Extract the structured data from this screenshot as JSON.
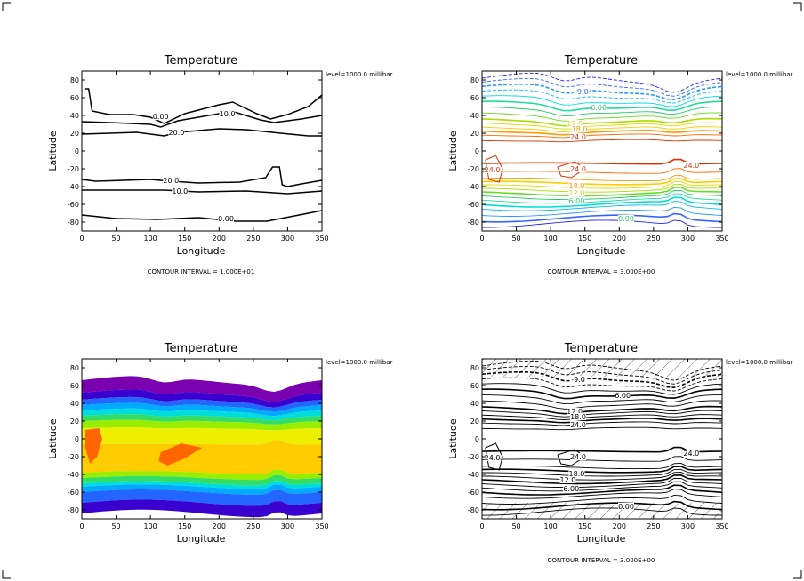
{
  "chart_data": [
    {
      "type": "contour",
      "title": "Temperature",
      "xlabel": "Longitude",
      "ylabel": "Latitude",
      "level_label": "level=1000.0  millibar",
      "footer": "CONTOUR INTERVAL = 1.000E+01",
      "xlim": [
        0,
        350
      ],
      "ylim": [
        -90,
        90
      ],
      "xticks": [
        0,
        50,
        100,
        150,
        200,
        250,
        300,
        350
      ],
      "yticks": [
        -80,
        -60,
        -40,
        -20,
        0,
        20,
        40,
        60,
        80
      ],
      "style": "lines",
      "contours": [
        {
          "level": 0.0,
          "label": "0.00",
          "points": [
            [
              5,
              70
            ],
            [
              10,
              70
            ],
            [
              15,
              45
            ],
            [
              40,
              41
            ],
            [
              75,
              41
            ],
            [
              100,
              38
            ],
            [
              120,
              31
            ],
            [
              150,
              42
            ],
            [
              200,
              52
            ],
            [
              220,
              55
            ],
            [
              255,
              42
            ],
            [
              275,
              36
            ],
            [
              300,
              41
            ],
            [
              330,
              50
            ],
            [
              350,
              63
            ]
          ]
        },
        {
          "level": 10.0,
          "label": "10.0",
          "points": [
            [
              0,
              33
            ],
            [
              40,
              32
            ],
            [
              100,
              30
            ],
            [
              115,
              27
            ],
            [
              140,
              34
            ],
            [
              200,
              42
            ],
            [
              222,
              44
            ],
            [
              260,
              35
            ],
            [
              280,
              32
            ],
            [
              320,
              36
            ],
            [
              350,
              40
            ]
          ]
        },
        {
          "level": 20.0,
          "label": "20.0",
          "points": [
            [
              0,
              19
            ],
            [
              40,
              20
            ],
            [
              80,
              21
            ],
            [
              120,
              17
            ],
            [
              140,
              21
            ],
            [
              200,
              25
            ],
            [
              240,
              24
            ],
            [
              290,
              20
            ],
            [
              330,
              17
            ],
            [
              350,
              17
            ]
          ]
        },
        {
          "level": 20.0,
          "label": "20.0",
          "points": [
            [
              0,
              -32
            ],
            [
              20,
              -34
            ],
            [
              60,
              -33
            ],
            [
              100,
              -32
            ],
            [
              130,
              -34
            ],
            [
              170,
              -36
            ],
            [
              230,
              -35
            ],
            [
              268,
              -30
            ],
            [
              278,
              -18
            ],
            [
              288,
              -18
            ],
            [
              292,
              -38
            ],
            [
              300,
              -40
            ],
            [
              320,
              -37
            ],
            [
              350,
              -33
            ]
          ]
        },
        {
          "level": 10.0,
          "label": "10.0",
          "points": [
            [
              0,
              -44
            ],
            [
              60,
              -44
            ],
            [
              120,
              -44
            ],
            [
              170,
              -46
            ],
            [
              240,
              -45
            ],
            [
              300,
              -48
            ],
            [
              350,
              -45
            ]
          ]
        },
        {
          "level": 0.0,
          "label": "0.00",
          "points": [
            [
              0,
              -72
            ],
            [
              50,
              -76
            ],
            [
              110,
              -77
            ],
            [
              170,
              -75
            ],
            [
              225,
              -79
            ],
            [
              270,
              -79
            ],
            [
              310,
              -73
            ],
            [
              350,
              -67
            ]
          ]
        }
      ],
      "labels": [
        {
          "text": "0.00",
          "x": 115,
          "y": 38
        },
        {
          "text": "10.0",
          "x": 212,
          "y": 41
        },
        {
          "text": "20.0",
          "x": 138,
          "y": 20
        },
        {
          "text": "20.0",
          "x": 130,
          "y": -34
        },
        {
          "text": "10.0",
          "x": 143,
          "y": -46
        },
        {
          "text": "0.00",
          "x": 210,
          "y": -77
        }
      ]
    },
    {
      "type": "contour",
      "title": "Temperature",
      "xlabel": "Longitude",
      "ylabel": "Latitude",
      "level_label": "level=1000.0  millibar",
      "footer": "CONTOUR INTERVAL = 3.000E+00",
      "xlim": [
        0,
        350
      ],
      "ylim": [
        -90,
        90
      ],
      "xticks": [
        0,
        50,
        100,
        150,
        200,
        250,
        300,
        350
      ],
      "yticks": [
        -80,
        -60,
        -40,
        -20,
        0,
        20,
        40,
        60,
        80
      ],
      "style": "colored-lines",
      "labels": [
        {
          "text": "6.00",
          "x": 170,
          "y": 48,
          "color": "#22cc66"
        },
        {
          "text": "12.0",
          "x": 135,
          "y": 30,
          "color": "#ccdd00"
        },
        {
          "text": "18.0",
          "x": 142,
          "y": 24,
          "color": "#ff9900"
        },
        {
          "text": "24.0",
          "x": 140,
          "y": 15,
          "color": "#dd3300"
        },
        {
          "text": "-9.0",
          "x": 145,
          "y": 66,
          "color": "#3366ff"
        },
        {
          "text": "24.0",
          "x": 15,
          "y": -22,
          "color": "#dd3300"
        },
        {
          "text": "24.0",
          "x": 140,
          "y": -21,
          "color": "#dd3300"
        },
        {
          "text": "24.0",
          "x": 305,
          "y": -17,
          "color": "#dd3300"
        },
        {
          "text": "18.0",
          "x": 138,
          "y": -40,
          "color": "#ff9900"
        },
        {
          "text": "12.0",
          "x": 138,
          "y": -48,
          "color": "#ccdd00"
        },
        {
          "text": "6.00",
          "x": 138,
          "y": -57,
          "color": "#22cc66"
        },
        {
          "text": "0.00",
          "x": 210,
          "y": -77,
          "color": "#22cc66"
        }
      ]
    },
    {
      "type": "filled-contour",
      "title": "Temperature",
      "xlabel": "Longitude",
      "ylabel": "Latitude",
      "level_label": "level=1000.0  millibar",
      "footer": "",
      "xlim": [
        0,
        350
      ],
      "ylim": [
        -90,
        90
      ],
      "xticks": [
        0,
        50,
        100,
        150,
        200,
        250,
        300,
        350
      ],
      "yticks": [
        -80,
        -60,
        -40,
        -20,
        0,
        20,
        40,
        60,
        80
      ],
      "style": "filled"
    },
    {
      "type": "contour",
      "title": "Temperature",
      "xlabel": "Longitude",
      "ylabel": "Latitude",
      "level_label": "level=1000.0  millibar",
      "footer": "CONTOUR INTERVAL = 3.000E+00",
      "xlim": [
        0,
        350
      ],
      "ylim": [
        -90,
        90
      ],
      "xticks": [
        0,
        50,
        100,
        150,
        200,
        250,
        300,
        350
      ],
      "yticks": [
        -80,
        -60,
        -40,
        -20,
        0,
        20,
        40,
        60,
        80
      ],
      "style": "black-lines-hatched",
      "labels": [
        {
          "text": "6.00",
          "x": 205,
          "y": 48,
          "color": "#000000"
        },
        {
          "text": "12.0",
          "x": 135,
          "y": 30,
          "color": "#000000"
        },
        {
          "text": "18.0",
          "x": 140,
          "y": 24,
          "color": "#000000"
        },
        {
          "text": "24.0",
          "x": 140,
          "y": 15,
          "color": "#000000"
        },
        {
          "text": "-9.0",
          "x": 140,
          "y": 66,
          "color": "#000000"
        },
        {
          "text": "24.0",
          "x": 15,
          "y": -22,
          "color": "#000000"
        },
        {
          "text": "24.0",
          "x": 140,
          "y": -21,
          "color": "#000000"
        },
        {
          "text": "24.0",
          "x": 305,
          "y": -17,
          "color": "#000000"
        },
        {
          "text": "18.0",
          "x": 138,
          "y": -40,
          "color": "#000000"
        },
        {
          "text": "12.0",
          "x": 125,
          "y": -47,
          "color": "#000000"
        },
        {
          "text": "6.00",
          "x": 130,
          "y": -57,
          "color": "#000000"
        },
        {
          "text": "0.00",
          "x": 210,
          "y": -77,
          "color": "#000000"
        }
      ]
    }
  ]
}
